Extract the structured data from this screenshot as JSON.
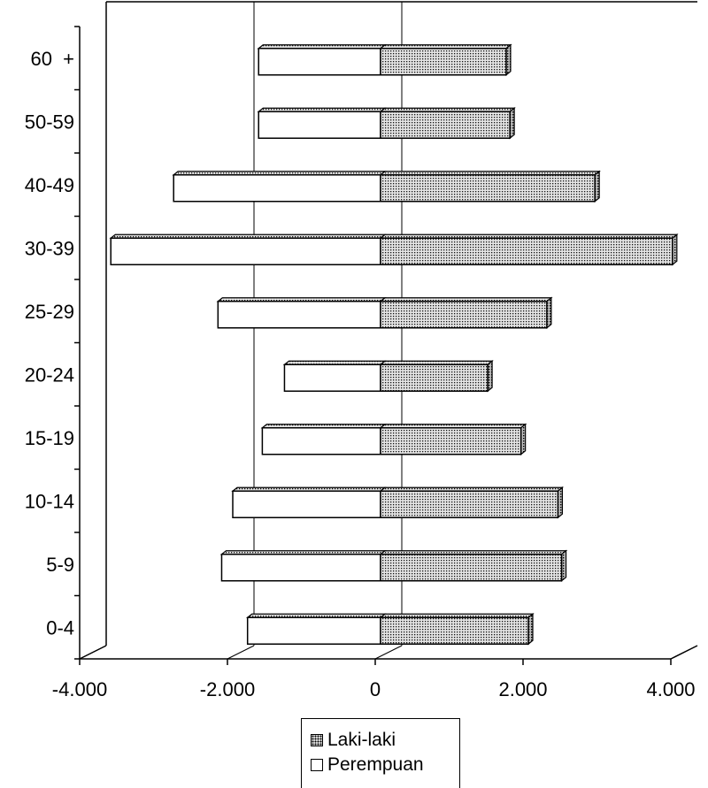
{
  "chart_data": {
    "type": "bar",
    "orientation": "horizontal",
    "categories": [
      "0-4",
      "5-9",
      "10-14",
      "15-19",
      "20-24",
      "25-29",
      "30-39",
      "40-49",
      "50-59",
      "60  +"
    ],
    "series": [
      {
        "name": "Laki-laki",
        "values": [
          2000,
          2450,
          2400,
          1900,
          1450,
          2250,
          3950,
          2900,
          1750,
          1700
        ]
      },
      {
        "name": "Perempuan",
        "values": [
          -1800,
          -2150,
          -2000,
          -1600,
          -1300,
          -2200,
          -3650,
          -2800,
          -1650,
          -1650
        ]
      }
    ],
    "x_ticks": [
      "-4.000",
      "-2.000",
      "0",
      "2.000",
      "4.000"
    ],
    "xlim": [
      -4000,
      4000
    ],
    "gridlines": [
      -2000,
      0
    ],
    "legend_position": "bottom",
    "colors": {
      "Laki-laki": "#d8d8d8",
      "Perempuan": "#ffffff"
    }
  }
}
